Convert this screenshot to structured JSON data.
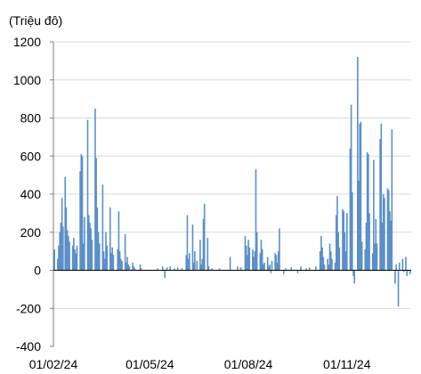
{
  "chart_data": {
    "type": "bar",
    "ylabel": "(Triệu đô)",
    "ylim": [
      -400,
      1200
    ],
    "y_ticks": [
      -400,
      -200,
      0,
      200,
      400,
      600,
      800,
      1000,
      1200
    ],
    "x_tick_labels": [
      "01/02/24",
      "01/05/24",
      "01/08/24",
      "01/11/24"
    ],
    "x_tick_dates": [
      "2024-02-01",
      "2024-05-01",
      "2024-08-01",
      "2024-11-01"
    ],
    "xlim": [
      "2024-02-01",
      "2024-12-31"
    ],
    "grid": "horizontal",
    "bar_color": "#5b8fc9",
    "series": [
      {
        "values_by_date": [
          [
            "2024-02-02",
            110
          ],
          [
            "2024-02-05",
            60
          ],
          [
            "2024-02-06",
            130
          ],
          [
            "2024-02-07",
            200
          ],
          [
            "2024-02-08",
            250
          ],
          [
            "2024-02-09",
            380
          ],
          [
            "2024-02-10",
            230
          ],
          [
            "2024-02-12",
            490
          ],
          [
            "2024-02-13",
            330
          ],
          [
            "2024-02-14",
            210
          ],
          [
            "2024-02-15",
            180
          ],
          [
            "2024-02-16",
            150
          ],
          [
            "2024-02-19",
            130
          ],
          [
            "2024-02-20",
            170
          ],
          [
            "2024-02-21",
            110
          ],
          [
            "2024-02-22",
            90
          ],
          [
            "2024-02-23",
            130
          ],
          [
            "2024-02-26",
            520
          ],
          [
            "2024-02-27",
            610
          ],
          [
            "2024-02-28",
            600
          ],
          [
            "2024-02-29",
            140
          ],
          [
            "2024-03-01",
            280
          ],
          [
            "2024-03-04",
            790
          ],
          [
            "2024-03-05",
            290
          ],
          [
            "2024-03-06",
            250
          ],
          [
            "2024-03-07",
            220
          ],
          [
            "2024-03-08",
            160
          ],
          [
            "2024-03-11",
            850
          ],
          [
            "2024-03-12",
            590
          ],
          [
            "2024-03-13",
            330
          ],
          [
            "2024-03-14",
            200
          ],
          [
            "2024-03-15",
            140
          ],
          [
            "2024-03-18",
            450
          ],
          [
            "2024-03-19",
            100
          ],
          [
            "2024-03-20",
            60
          ],
          [
            "2024-03-21",
            200
          ],
          [
            "2024-03-22",
            130
          ],
          [
            "2024-03-25",
            330
          ],
          [
            "2024-03-26",
            90
          ],
          [
            "2024-03-27",
            120
          ],
          [
            "2024-03-28",
            80
          ],
          [
            "2024-04-01",
            110
          ],
          [
            "2024-04-02",
            310
          ],
          [
            "2024-04-03",
            100
          ],
          [
            "2024-04-04",
            60
          ],
          [
            "2024-04-05",
            50
          ],
          [
            "2024-04-08",
            190
          ],
          [
            "2024-04-09",
            40
          ],
          [
            "2024-04-10",
            70
          ],
          [
            "2024-04-11",
            30
          ],
          [
            "2024-04-12",
            20
          ],
          [
            "2024-04-15",
            40
          ],
          [
            "2024-04-16",
            20
          ],
          [
            "2024-04-17",
            10
          ],
          [
            "2024-04-22",
            30
          ],
          [
            "2024-04-23",
            10
          ],
          [
            "2024-05-08",
            10
          ],
          [
            "2024-05-13",
            20
          ],
          [
            "2024-05-15",
            -40
          ],
          [
            "2024-05-17",
            15
          ],
          [
            "2024-05-20",
            20
          ],
          [
            "2024-05-24",
            10
          ],
          [
            "2024-05-27",
            15
          ],
          [
            "2024-05-31",
            10
          ],
          [
            "2024-06-04",
            80
          ],
          [
            "2024-06-05",
            290
          ],
          [
            "2024-06-06",
            60
          ],
          [
            "2024-06-07",
            90
          ],
          [
            "2024-06-10",
            240
          ],
          [
            "2024-06-11",
            40
          ],
          [
            "2024-06-12",
            100
          ],
          [
            "2024-06-14",
            50
          ],
          [
            "2024-06-17",
            160
          ],
          [
            "2024-06-18",
            30
          ],
          [
            "2024-06-19",
            60
          ],
          [
            "2024-06-20",
            270
          ],
          [
            "2024-06-21",
            350
          ],
          [
            "2024-06-24",
            170
          ],
          [
            "2024-06-25",
            20
          ],
          [
            "2024-06-28",
            10
          ],
          [
            "2024-07-05",
            10
          ],
          [
            "2024-07-15",
            70
          ],
          [
            "2024-07-22",
            20
          ],
          [
            "2024-07-25",
            15
          ],
          [
            "2024-07-29",
            180
          ],
          [
            "2024-07-30",
            130
          ],
          [
            "2024-07-31",
            80
          ],
          [
            "2024-08-01",
            160
          ],
          [
            "2024-08-02",
            120
          ],
          [
            "2024-08-05",
            110
          ],
          [
            "2024-08-06",
            70
          ],
          [
            "2024-08-07",
            100
          ],
          [
            "2024-08-08",
            530
          ],
          [
            "2024-08-09",
            200
          ],
          [
            "2024-08-12",
            90
          ],
          [
            "2024-08-13",
            160
          ],
          [
            "2024-08-14",
            110
          ],
          [
            "2024-08-15",
            30
          ],
          [
            "2024-08-16",
            40
          ],
          [
            "2024-08-19",
            70
          ],
          [
            "2024-08-20",
            20
          ],
          [
            "2024-08-21",
            30
          ],
          [
            "2024-08-22",
            -15
          ],
          [
            "2024-08-23",
            50
          ],
          [
            "2024-08-26",
            90
          ],
          [
            "2024-08-27",
            80
          ],
          [
            "2024-08-28",
            40
          ],
          [
            "2024-08-29",
            100
          ],
          [
            "2024-08-30",
            220
          ],
          [
            "2024-09-03",
            -20
          ],
          [
            "2024-09-05",
            10
          ],
          [
            "2024-09-10",
            15
          ],
          [
            "2024-09-16",
            -15
          ],
          [
            "2024-09-19",
            20
          ],
          [
            "2024-09-24",
            10
          ],
          [
            "2024-09-27",
            15
          ],
          [
            "2024-10-03",
            20
          ],
          [
            "2024-10-07",
            100
          ],
          [
            "2024-10-08",
            180
          ],
          [
            "2024-10-09",
            120
          ],
          [
            "2024-10-10",
            70
          ],
          [
            "2024-10-11",
            30
          ],
          [
            "2024-10-14",
            60
          ],
          [
            "2024-10-15",
            30
          ],
          [
            "2024-10-16",
            140
          ],
          [
            "2024-10-17",
            100
          ],
          [
            "2024-10-18",
            60
          ],
          [
            "2024-10-21",
            40
          ],
          [
            "2024-10-22",
            290
          ],
          [
            "2024-10-23",
            390
          ],
          [
            "2024-10-24",
            200
          ],
          [
            "2024-10-25",
            120
          ],
          [
            "2024-10-28",
            320
          ],
          [
            "2024-10-29",
            310
          ],
          [
            "2024-10-30",
            200
          ],
          [
            "2024-10-31",
            100
          ],
          [
            "2024-11-01",
            300
          ],
          [
            "2024-11-04",
            640
          ],
          [
            "2024-11-05",
            870
          ],
          [
            "2024-11-06",
            410
          ],
          [
            "2024-11-07",
            -30
          ],
          [
            "2024-11-08",
            -70
          ],
          [
            "2024-11-11",
            1120
          ],
          [
            "2024-11-12",
            470
          ],
          [
            "2024-11-13",
            770
          ],
          [
            "2024-11-14",
            780
          ],
          [
            "2024-11-15",
            150
          ],
          [
            "2024-11-18",
            110
          ],
          [
            "2024-11-19",
            250
          ],
          [
            "2024-11-20",
            620
          ],
          [
            "2024-11-21",
            610
          ],
          [
            "2024-11-22",
            300
          ],
          [
            "2024-11-25",
            90
          ],
          [
            "2024-11-26",
            580
          ],
          [
            "2024-11-27",
            140
          ],
          [
            "2024-11-28",
            270
          ],
          [
            "2024-11-29",
            140
          ],
          [
            "2024-12-02",
            690
          ],
          [
            "2024-12-03",
            770
          ],
          [
            "2024-12-04",
            250
          ],
          [
            "2024-12-05",
            400
          ],
          [
            "2024-12-06",
            380
          ],
          [
            "2024-12-09",
            430
          ],
          [
            "2024-12-10",
            420
          ],
          [
            "2024-12-11",
            310
          ],
          [
            "2024-12-12",
            260
          ],
          [
            "2024-12-13",
            740
          ],
          [
            "2024-12-16",
            -70
          ],
          [
            "2024-12-17",
            30
          ],
          [
            "2024-12-19",
            -190
          ],
          [
            "2024-12-20",
            40
          ],
          [
            "2024-12-23",
            60
          ],
          [
            "2024-12-24",
            -10
          ],
          [
            "2024-12-26",
            70
          ],
          [
            "2024-12-27",
            -30
          ],
          [
            "2024-12-30",
            -20
          ]
        ]
      }
    ]
  }
}
